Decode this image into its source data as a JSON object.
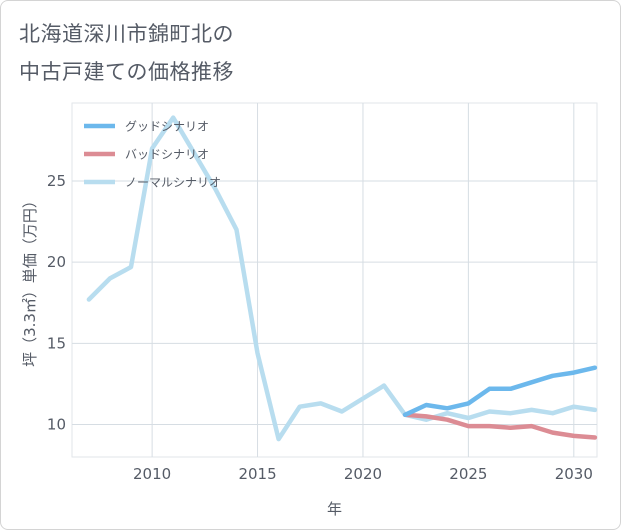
{
  "title_lines": [
    "北海道深川市錦町北の",
    "中古戸建ての価格推移"
  ],
  "chart_data": {
    "type": "line",
    "title": "北海道深川市錦町北の中古戸建ての価格推移",
    "xlabel": "年",
    "ylabel": "坪（3.3㎡）単価（万円）",
    "xlim": [
      2006.2,
      2031.1
    ],
    "ylim": [
      8.0,
      29.8
    ],
    "xticks": [
      2010,
      2015,
      2020,
      2025,
      2030
    ],
    "yticks": [
      10,
      15,
      20,
      25
    ],
    "grid": true,
    "legend_position": "top-left",
    "series": [
      {
        "name": "グッドシナリオ",
        "color": "#6cb8ec",
        "x": [
          2022,
          2023,
          2024,
          2025,
          2026,
          2027,
          2028,
          2029,
          2030,
          2031
        ],
        "y": [
          10.6,
          11.2,
          11.0,
          11.3,
          12.2,
          12.2,
          12.6,
          13.0,
          13.2,
          13.5
        ]
      },
      {
        "name": "バッドシナリオ",
        "color": "#dc8c94",
        "x": [
          2022,
          2023,
          2024,
          2025,
          2026,
          2027,
          2028,
          2029,
          2030,
          2031
        ],
        "y": [
          10.6,
          10.5,
          10.3,
          9.9,
          9.9,
          9.8,
          9.9,
          9.5,
          9.3,
          9.2
        ]
      },
      {
        "name": "ノーマルシナリオ",
        "color": "#b8ddef",
        "x": [
          2007,
          2008,
          2009,
          2010,
          2011,
          2012,
          2013,
          2014,
          2015,
          2016,
          2017,
          2018,
          2019,
          2020,
          2021,
          2022,
          2023,
          2024,
          2025,
          2026,
          2027,
          2028,
          2029,
          2030,
          2031
        ],
        "y": [
          17.7,
          19.0,
          19.7,
          27.0,
          28.9,
          26.7,
          24.5,
          22.0,
          14.4,
          9.1,
          11.1,
          11.3,
          10.8,
          11.6,
          12.4,
          10.6,
          10.3,
          10.7,
          10.4,
          10.8,
          10.7,
          10.9,
          10.7,
          11.1,
          10.9
        ]
      }
    ]
  }
}
